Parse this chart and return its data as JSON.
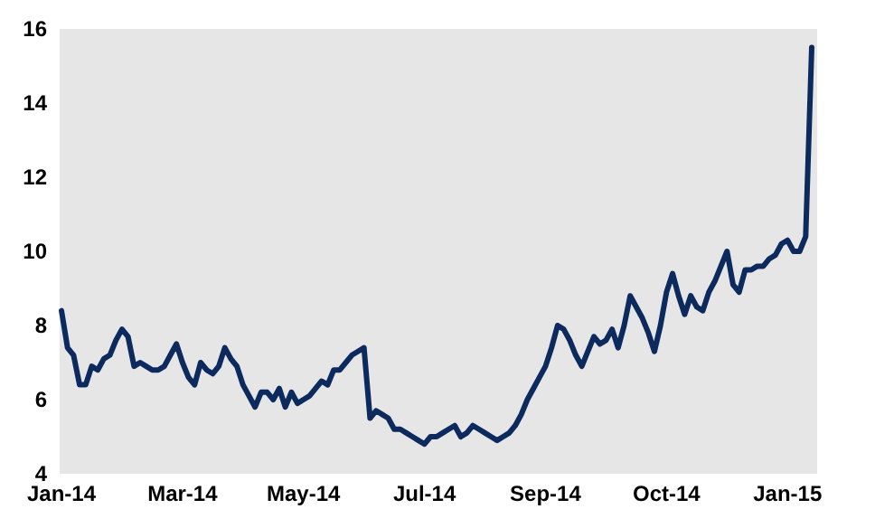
{
  "chart_data": {
    "type": "line",
    "categories": [
      "Jan-14",
      null,
      null,
      null,
      null,
      null,
      null,
      null,
      null,
      null,
      null,
      null,
      null,
      null,
      null,
      null,
      null,
      null,
      null,
      null,
      "Mar-14",
      null,
      null,
      null,
      null,
      null,
      null,
      null,
      null,
      null,
      null,
      null,
      null,
      null,
      null,
      null,
      null,
      null,
      null,
      null,
      "May-14",
      null,
      null,
      null,
      null,
      null,
      null,
      null,
      null,
      null,
      null,
      null,
      null,
      null,
      null,
      null,
      null,
      null,
      null,
      null,
      "Jul-14",
      null,
      null,
      null,
      null,
      null,
      null,
      null,
      null,
      null,
      null,
      null,
      null,
      null,
      null,
      null,
      null,
      null,
      null,
      null,
      "Sep-14",
      null,
      null,
      null,
      null,
      null,
      null,
      null,
      null,
      null,
      null,
      null,
      null,
      null,
      null,
      null,
      null,
      null,
      null,
      null,
      "Oct-14",
      null,
      null,
      null,
      null,
      null,
      null,
      null,
      null,
      null,
      null,
      null,
      null,
      null,
      null,
      null,
      null,
      null,
      null,
      null,
      "Jan-15",
      null,
      null,
      null,
      null
    ],
    "series": [
      {
        "color": "#0d2a5e",
        "values": [
          8.4,
          7.4,
          7.2,
          6.4,
          6.4,
          6.9,
          6.8,
          7.1,
          7.2,
          7.6,
          7.9,
          7.7,
          6.9,
          7.0,
          6.9,
          6.8,
          6.8,
          6.9,
          7.2,
          7.5,
          7.0,
          6.6,
          6.4,
          7.0,
          6.8,
          6.7,
          6.9,
          7.4,
          7.1,
          6.9,
          6.4,
          6.1,
          5.8,
          6.2,
          6.2,
          6.0,
          6.3,
          5.8,
          6.2,
          5.9,
          6.0,
          6.1,
          6.3,
          6.5,
          6.4,
          6.8,
          6.8,
          7.0,
          7.2,
          7.3,
          7.4,
          5.5,
          5.7,
          5.6,
          5.5,
          5.2,
          5.2,
          5.1,
          5.0,
          4.9,
          4.8,
          5.0,
          5.0,
          5.1,
          5.2,
          5.3,
          5.0,
          5.1,
          5.3,
          5.2,
          5.1,
          5.0,
          4.9,
          5.0,
          5.1,
          5.3,
          5.6,
          6.0,
          6.3,
          6.6,
          6.9,
          7.4,
          8.0,
          7.9,
          7.6,
          7.2,
          6.9,
          7.3,
          7.7,
          7.5,
          7.6,
          7.9,
          7.4,
          8.0,
          8.8,
          8.5,
          8.2,
          7.8,
          7.3,
          8.0,
          8.9,
          9.4,
          8.8,
          8.3,
          8.8,
          8.5,
          8.4,
          8.9,
          9.2,
          9.6,
          10.0,
          9.1,
          8.9,
          9.5,
          9.5,
          9.6,
          9.6,
          9.8,
          9.9,
          10.2,
          10.3,
          10.0,
          10.0,
          10.4,
          15.5
        ]
      }
    ],
    "ylim": [
      4,
      16
    ],
    "yticks": [
      4,
      6,
      8,
      10,
      12,
      14,
      16
    ],
    "grid": false,
    "marker": "none",
    "line_style": "solid"
  }
}
